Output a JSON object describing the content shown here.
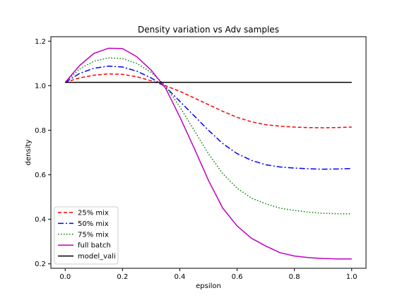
{
  "chart_data": {
    "type": "line",
    "title": "Density variation vs Adv samples",
    "xlabel": "epsilon",
    "ylabel": "density",
    "xlim": [
      -0.05,
      1.05
    ],
    "ylim": [
      0.18,
      1.22
    ],
    "xticks": [
      0.0,
      0.2,
      0.4,
      0.6,
      0.8,
      1.0
    ],
    "xtick_labels": [
      "0.0",
      "0.2",
      "0.4",
      "0.6",
      "0.8",
      "1.0"
    ],
    "yticks": [
      0.2,
      0.4,
      0.6,
      0.8,
      1.0,
      1.2
    ],
    "ytick_labels": [
      "0.2",
      "0.4",
      "0.6",
      "0.8",
      "1.0",
      "1.2"
    ],
    "grid": false,
    "legend_position": "lower-left",
    "x": [
      0.0,
      0.05,
      0.1,
      0.15,
      0.2,
      0.25,
      0.3,
      0.35,
      0.4,
      0.45,
      0.5,
      0.55,
      0.6,
      0.65,
      0.7,
      0.75,
      0.8,
      0.85,
      0.9,
      0.95,
      1.0
    ],
    "series": [
      {
        "name": "25% mix",
        "color": "#ff0000",
        "dash": "dashed",
        "values": [
          1.015,
          1.035,
          1.047,
          1.053,
          1.051,
          1.04,
          1.022,
          1.0,
          0.975,
          0.945,
          0.915,
          0.885,
          0.858,
          0.838,
          0.825,
          0.818,
          0.814,
          0.812,
          0.811,
          0.812,
          0.814
        ]
      },
      {
        "name": "50% mix",
        "color": "#0000ff",
        "dash": "dashdot",
        "values": [
          1.015,
          1.055,
          1.078,
          1.088,
          1.084,
          1.065,
          1.035,
          0.995,
          0.93,
          0.865,
          0.8,
          0.74,
          0.695,
          0.665,
          0.645,
          0.635,
          0.63,
          0.627,
          0.625,
          0.626,
          0.628
        ]
      },
      {
        "name": "75% mix",
        "color": "#008000",
        "dash": "dotted",
        "values": [
          1.015,
          1.075,
          1.11,
          1.125,
          1.122,
          1.1,
          1.06,
          1.0,
          0.905,
          0.8,
          0.695,
          0.605,
          0.54,
          0.495,
          0.47,
          0.45,
          0.44,
          0.432,
          0.427,
          0.425,
          0.425
        ]
      },
      {
        "name": "full batch",
        "color": "#bf00bf",
        "dash": "solid",
        "values": [
          1.015,
          1.09,
          1.145,
          1.168,
          1.167,
          1.13,
          1.07,
          0.99,
          0.86,
          0.72,
          0.575,
          0.45,
          0.37,
          0.315,
          0.28,
          0.25,
          0.235,
          0.228,
          0.224,
          0.222,
          0.222
        ]
      },
      {
        "name": "model_vali",
        "color": "#000000",
        "dash": "solid",
        "values": [
          1.015,
          1.015,
          1.015,
          1.015,
          1.015,
          1.015,
          1.015,
          1.015,
          1.015,
          1.015,
          1.015,
          1.015,
          1.015,
          1.015,
          1.015,
          1.015,
          1.015,
          1.015,
          1.015,
          1.015,
          1.015
        ]
      }
    ]
  }
}
